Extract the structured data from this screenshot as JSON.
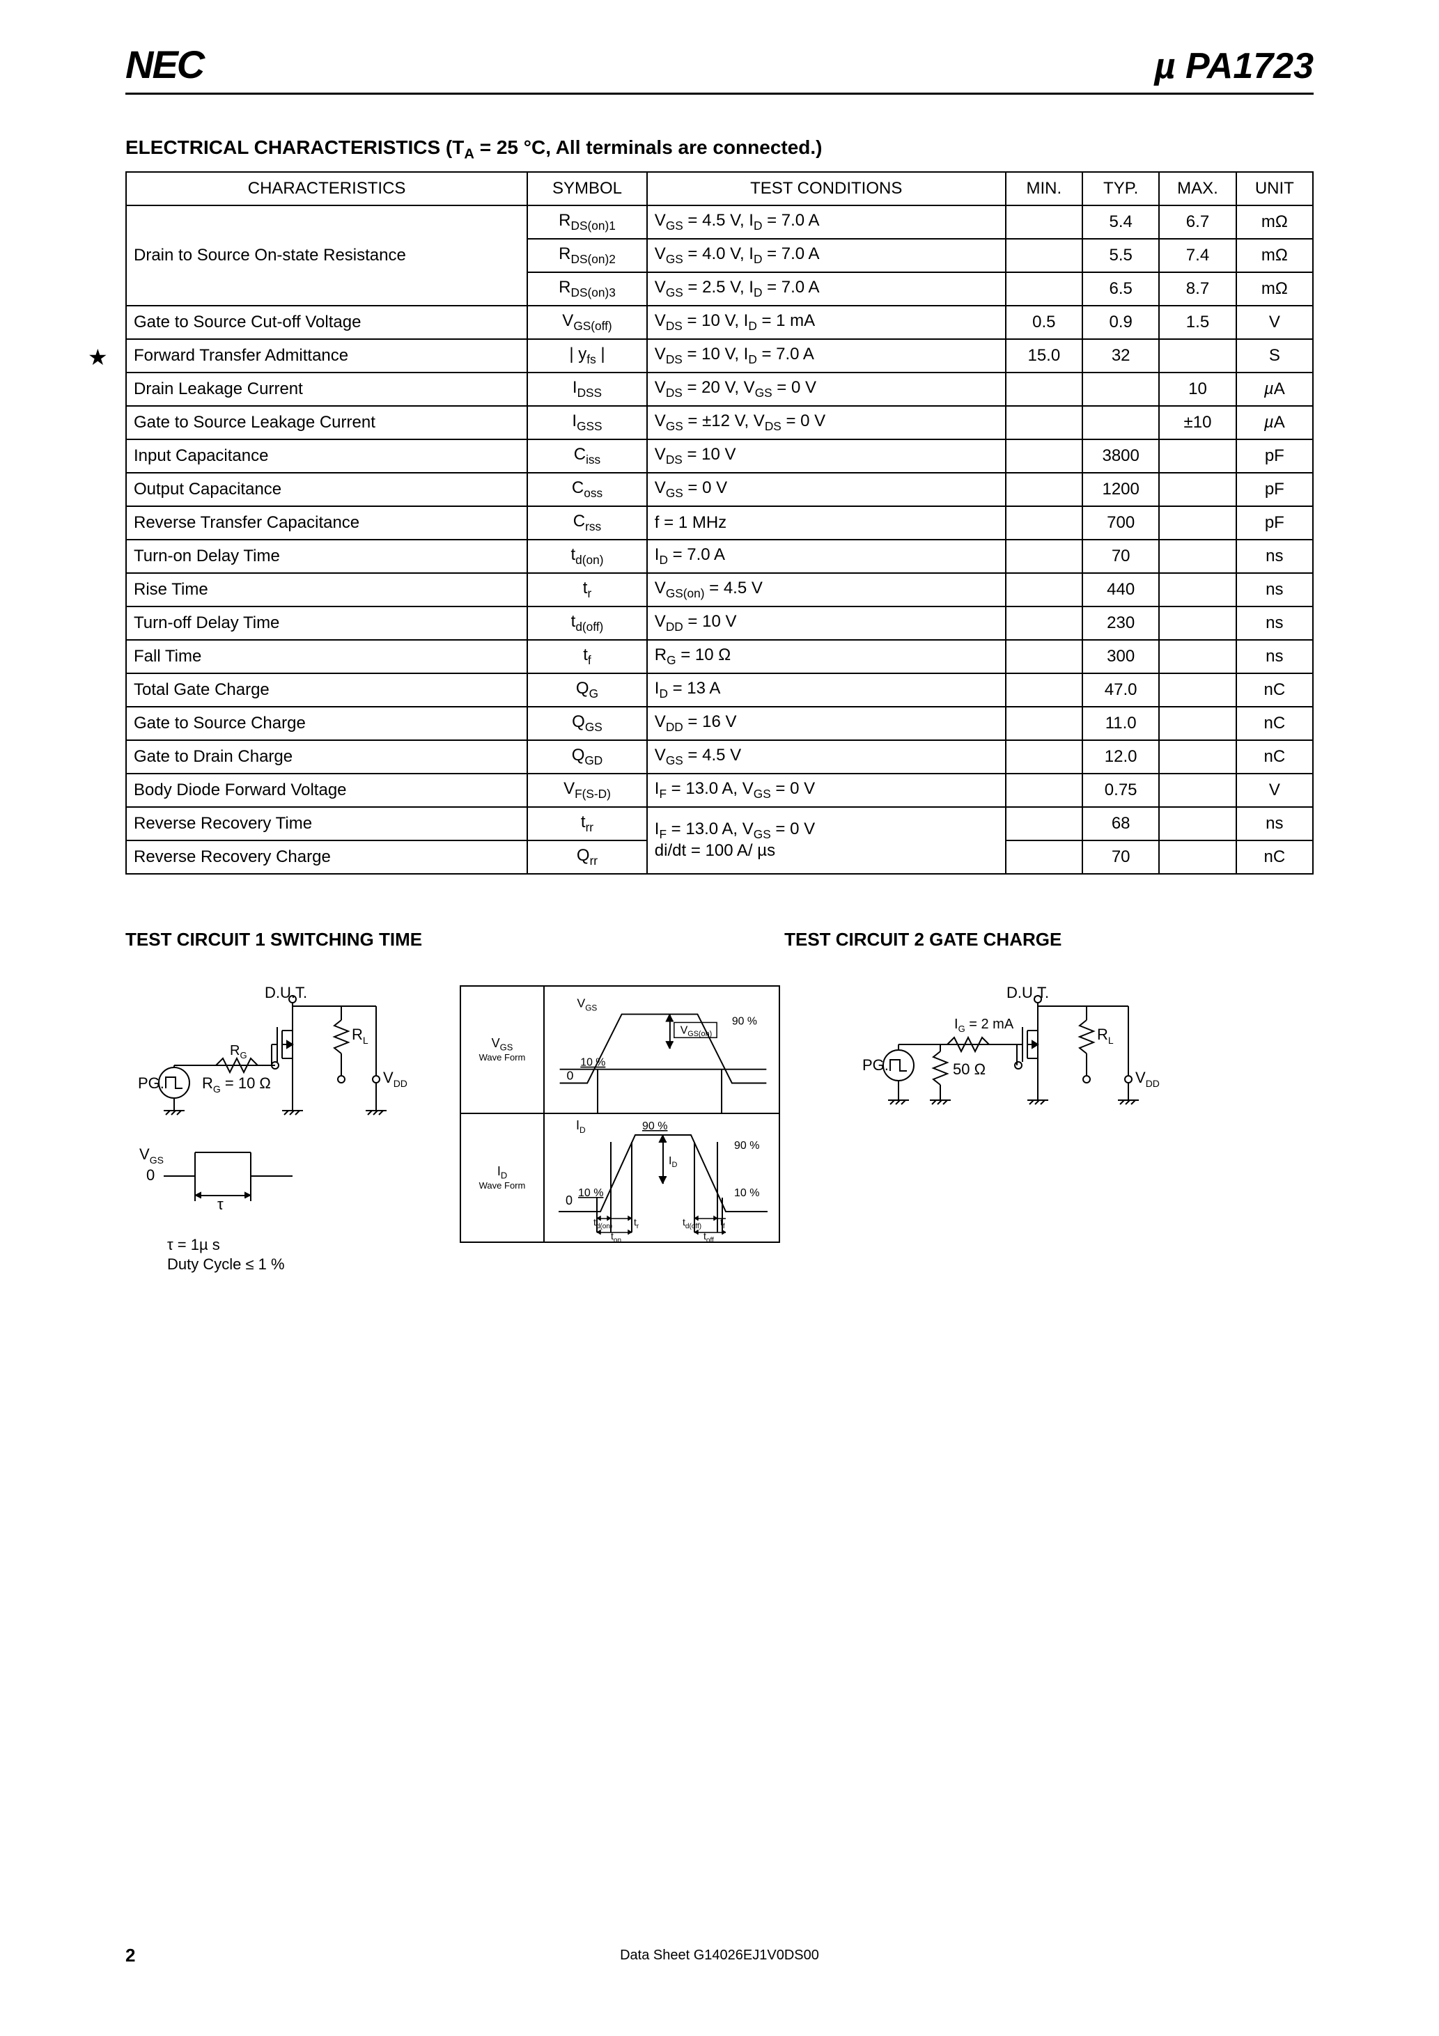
{
  "header": {
    "logo": "NEC",
    "part_prefix": "µ ",
    "part_number": "PA1723"
  },
  "section_title_prefix": "ELECTRICAL CHARACTERISTICS (T",
  "section_title_sub": "A",
  "section_title_suffix": " = 25 °C, All terminals are connected.)",
  "table": {
    "headers": {
      "char": "CHARACTERISTICS",
      "sym": "SYMBOL",
      "cond": "TEST CONDITIONS",
      "min": "MIN.",
      "typ": "TYP.",
      "max": "MAX.",
      "unit": "UNIT"
    },
    "rows": [
      {
        "char": "Drain to Source On-state Resistance",
        "sym_html": "R<sub>DS(on)1</sub>",
        "cond_html": "V<sub>GS</sub> = 4.5 V, I<sub>D</sub> = 7.0 A",
        "min": "",
        "typ": "5.4",
        "max": "6.7",
        "unit": "mΩ",
        "rowspan": 3
      },
      {
        "char": "",
        "sym_html": "R<sub>DS(on)2</sub>",
        "cond_html": "V<sub>GS</sub> = 4.0 V, I<sub>D</sub> = 7.0 A",
        "min": "",
        "typ": "5.5",
        "max": "7.4",
        "unit": "mΩ"
      },
      {
        "char": "",
        "sym_html": "R<sub>DS(on)3</sub>",
        "cond_html": "V<sub>GS</sub> = 2.5 V, I<sub>D</sub> = 7.0 A",
        "min": "",
        "typ": "6.5",
        "max": "8.7",
        "unit": "mΩ"
      },
      {
        "char": "Gate to Source Cut-off Voltage",
        "sym_html": "V<sub>GS(off)</sub>",
        "cond_html": "V<sub>DS</sub> = 10 V, I<sub>D</sub> = 1 mA",
        "min": "0.5",
        "typ": "0.9",
        "max": "1.5",
        "unit": "V"
      },
      {
        "star": true,
        "char": "Forward Transfer Admittance",
        "sym_html": "| y<sub>fs</sub> |",
        "cond_html": "V<sub>DS</sub> = 10 V, I<sub>D</sub> = 7.0 A",
        "min": "15.0",
        "typ": "32",
        "max": "",
        "unit": "S"
      },
      {
        "char": "Drain Leakage Current",
        "sym_html": "I<sub>DSS</sub>",
        "cond_html": "V<sub>DS</sub> = 20 V, V<sub>GS</sub> = 0 V",
        "min": "",
        "typ": "",
        "max": "10",
        "unit": "µA"
      },
      {
        "char": "Gate to Source Leakage Current",
        "sym_html": "I<sub>GSS</sub>",
        "cond_html": "V<sub>GS</sub> = ±12 V, V<sub>DS</sub> = 0 V",
        "min": "",
        "typ": "",
        "max": "±10",
        "unit": "µA"
      },
      {
        "char": "Input Capacitance",
        "sym_html": "C<sub>iss</sub>",
        "cond_html": "V<sub>DS</sub> = 10 V",
        "min": "",
        "typ": "3800",
        "max": "",
        "unit": "pF"
      },
      {
        "char": "Output Capacitance",
        "sym_html": "C<sub>oss</sub>",
        "cond_html": "V<sub>GS</sub> = 0 V",
        "min": "",
        "typ": "1200",
        "max": "",
        "unit": "pF"
      },
      {
        "char": "Reverse Transfer Capacitance",
        "sym_html": "C<sub>rss</sub>",
        "cond_html": "f = 1 MHz",
        "min": "",
        "typ": "700",
        "max": "",
        "unit": "pF"
      },
      {
        "char": "Turn-on Delay Time",
        "sym_html": "t<sub>d(on)</sub>",
        "cond_html": "I<sub>D</sub> = 7.0 A",
        "min": "",
        "typ": "70",
        "max": "",
        "unit": "ns"
      },
      {
        "char": "Rise Time",
        "sym_html": "t<sub>r</sub>",
        "cond_html": "V<sub>GS(on)</sub> = 4.5 V",
        "min": "",
        "typ": "440",
        "max": "",
        "unit": "ns"
      },
      {
        "char": "Turn-off Delay Time",
        "sym_html": "t<sub>d(off)</sub>",
        "cond_html": "V<sub>DD</sub> = 10 V",
        "min": "",
        "typ": "230",
        "max": "",
        "unit": "ns"
      },
      {
        "char": "Fall Time",
        "sym_html": "t<sub>f</sub>",
        "cond_html": "R<sub>G</sub> = 10 Ω",
        "min": "",
        "typ": "300",
        "max": "",
        "unit": "ns"
      },
      {
        "char": "Total Gate Charge",
        "sym_html": "Q<sub>G</sub>",
        "cond_html": "I<sub>D</sub> = 13 A",
        "min": "",
        "typ": "47.0",
        "max": "",
        "unit": "nC"
      },
      {
        "char": "Gate to Source Charge",
        "sym_html": "Q<sub>GS</sub>",
        "cond_html": "V<sub>DD</sub> = 16 V",
        "min": "",
        "typ": "11.0",
        "max": "",
        "unit": "nC"
      },
      {
        "char": "Gate to Drain Charge",
        "sym_html": "Q<sub>GD</sub>",
        "cond_html": "V<sub>GS</sub> = 4.5 V",
        "min": "",
        "typ": "12.0",
        "max": "",
        "unit": "nC"
      },
      {
        "char": "Body Diode Forward Voltage",
        "sym_html": "V<sub>F(S-D)</sub>",
        "cond_html": "I<sub>F</sub> = 13.0 A, V<sub>GS</sub> = 0 V",
        "min": "",
        "typ": "0.75",
        "max": "",
        "unit": "V"
      },
      {
        "char": "Reverse Recovery Time",
        "sym_html": "t<sub>rr</sub>",
        "cond_html": "I<sub>F</sub> = 13.0 A, V<sub>GS</sub> = 0 V",
        "min": "",
        "typ": "68",
        "max": "",
        "unit": "ns",
        "cond_rowspan": 2,
        "cond2_html": "di/dt = 100 A/ µs"
      },
      {
        "char": "Reverse Recovery Charge",
        "sym_html": "Q<sub>rr</sub>",
        "cond_html": "",
        "min": "",
        "typ": "70",
        "max": "",
        "unit": "nC",
        "skip_cond": true
      }
    ]
  },
  "circuit1": {
    "title": "TEST CIRCUIT 1  SWITCHING TIME",
    "labels": {
      "dut": "D.U.T.",
      "rl": "R",
      "rl_sub": "L",
      "pg": "PG.",
      "rg": "R",
      "rg_sub": "G",
      "rg_val": "R",
      "rg_val_sub": "G",
      "rg_val_suffix": " = 10 Ω",
      "vdd": "V",
      "vdd_sub": "DD",
      "vgs": "V",
      "vgs_sub": "GS",
      "zero": "0",
      "tau": "τ",
      "tau_eq": "τ = 1µ s",
      "duty": "Duty Cycle ≤ 1 %"
    },
    "waveform": {
      "vgs": "V",
      "vgs_sub": "GS",
      "wave_form": "Wave Form",
      "id": "I",
      "id_sub": "D",
      "p90": "90 %",
      "p10": "10 %",
      "vgson": "V",
      "vgson_sub": "GS(on)",
      "zero": "0",
      "tdon": "t",
      "tdon_sub": "d(on)",
      "tr": "t",
      "tr_sub": "r",
      "tdoff": "t",
      "tdoff_sub": "d(off)",
      "tf": "t",
      "tf_sub": "f",
      "ton": "t",
      "ton_sub": "on",
      "toff": "t",
      "toff_sub": "off"
    }
  },
  "circuit2": {
    "title": "TEST CIRCUIT 2  GATE CHARGE",
    "labels": {
      "dut": "D.U.T.",
      "ig": "I",
      "ig_sub": "G",
      "ig_val": " = 2 mA",
      "rl": "R",
      "rl_sub": "L",
      "pg": "PG.",
      "r50": "50 Ω",
      "vdd": "V",
      "vdd_sub": "DD"
    }
  },
  "footer": {
    "page": "2",
    "doc": "Data Sheet  G14026EJ1V0DS00"
  },
  "colors": {
    "text": "#000000",
    "bg": "#ffffff",
    "border": "#000000"
  }
}
